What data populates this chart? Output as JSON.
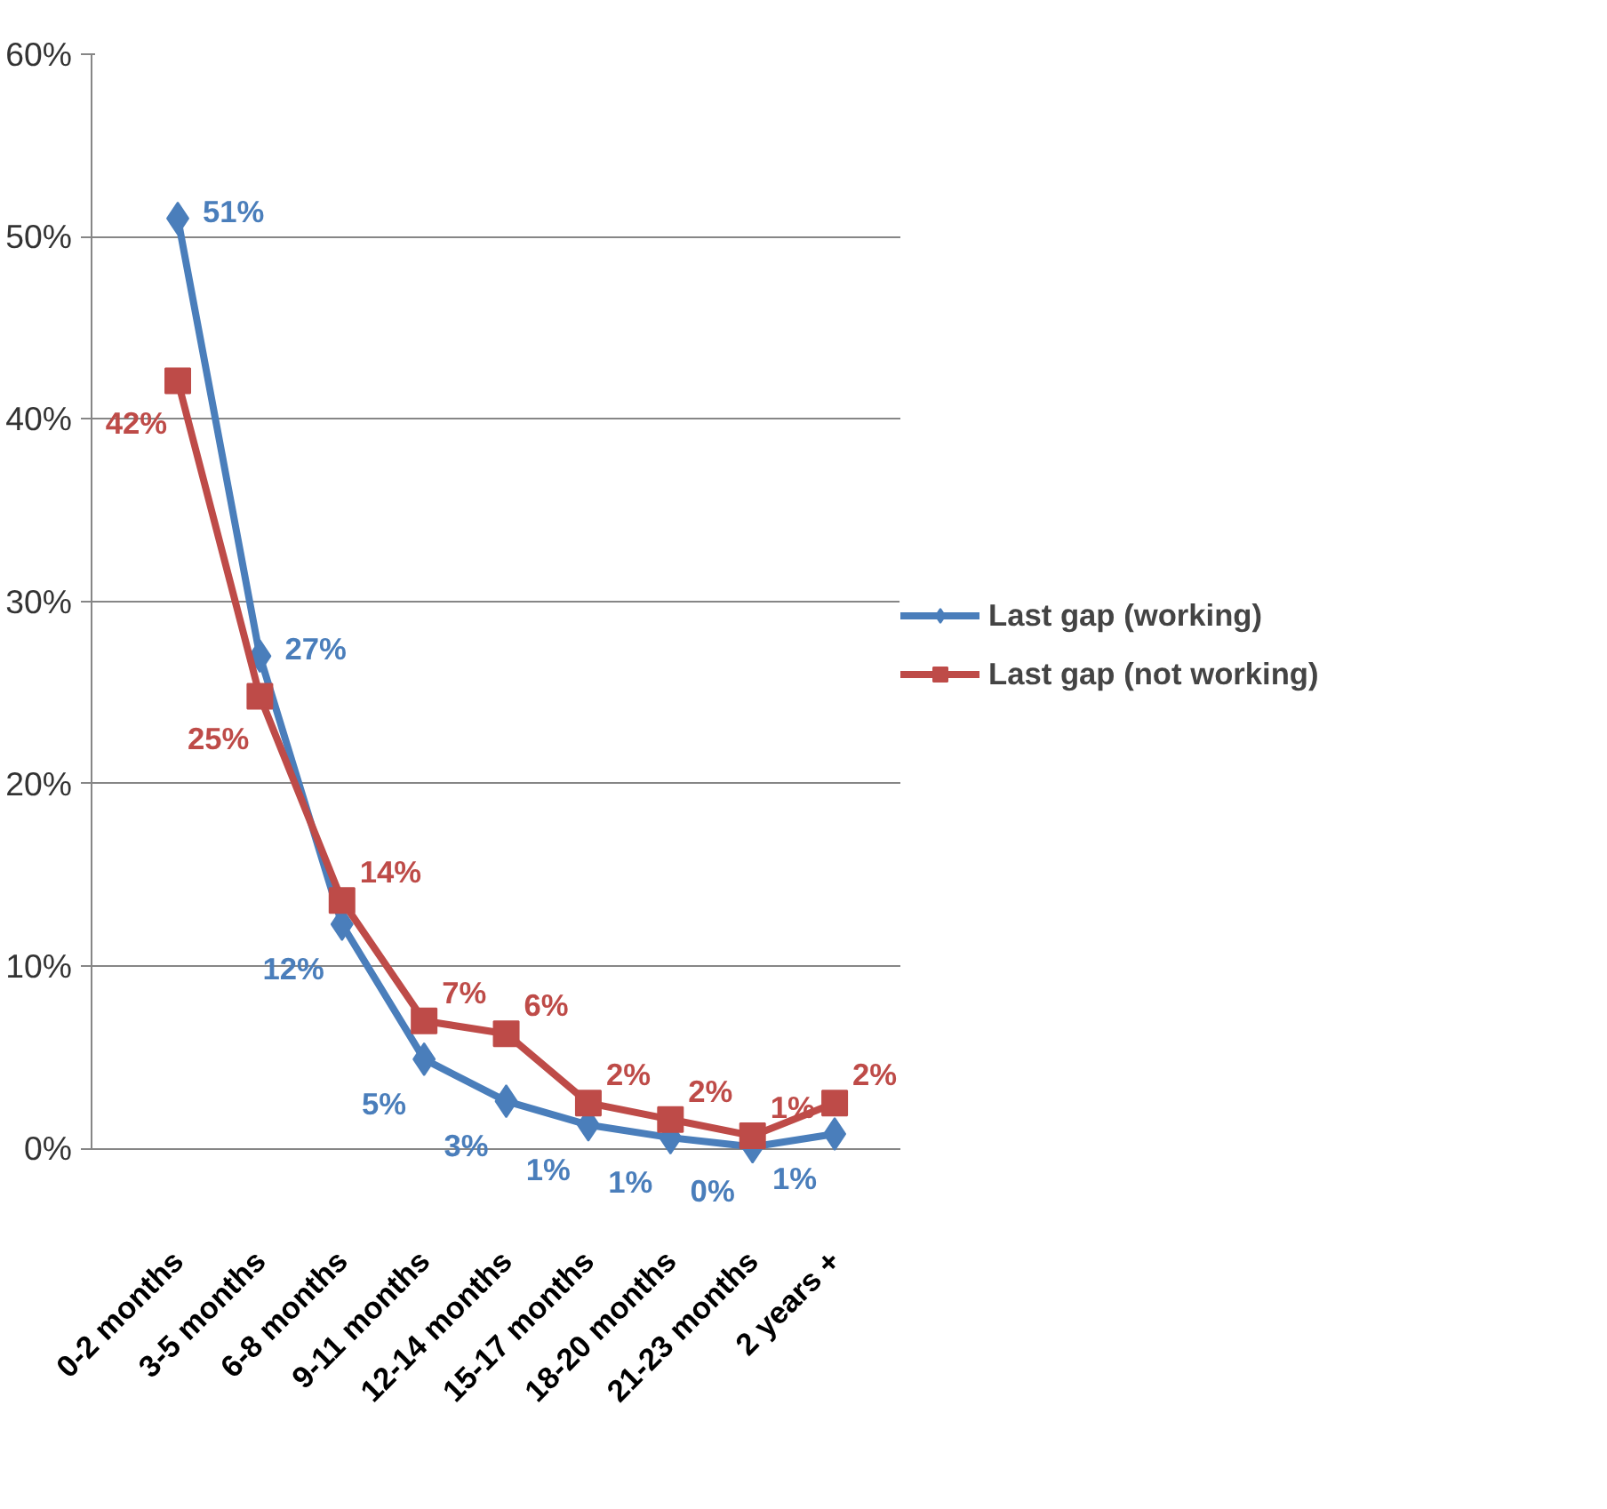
{
  "chart_data": {
    "type": "line",
    "categories": [
      "0-2 months",
      "3-5 months",
      "6-8 months",
      "9-11 months",
      "12-14 months",
      "15-17 months",
      "18-20 months",
      "21-23 months",
      "2 years +"
    ],
    "series": [
      {
        "name": "Last gap (working)",
        "color": "#4a7ebb",
        "marker": "diamond",
        "values": [
          51.0,
          27.0,
          12.3,
          4.9,
          2.6,
          1.3,
          0.6,
          0.1,
          0.8
        ],
        "value_labels": [
          "51%",
          "27%",
          "12%",
          "5%",
          "3%",
          "1%",
          "1%",
          "0%",
          "1%"
        ]
      },
      {
        "name": "Last gap (not working)",
        "color": "#be4b48",
        "marker": "square",
        "values": [
          42.1,
          24.8,
          13.6,
          7.0,
          6.3,
          2.5,
          1.6,
          0.7,
          2.5
        ],
        "value_labels": [
          "42%",
          "25%",
          "14%",
          "7%",
          "6%",
          "2%",
          "2%",
          "1%",
          "2%"
        ]
      }
    ],
    "ylim": [
      0,
      60
    ],
    "yticks": [
      {
        "value": 0,
        "label": "0%"
      },
      {
        "value": 10,
        "label": "10%"
      },
      {
        "value": 20,
        "label": "20%"
      },
      {
        "value": 30,
        "label": "30%"
      },
      {
        "value": 40,
        "label": "40%"
      },
      {
        "value": 50,
        "label": "50%"
      },
      {
        "value": 60,
        "label": "60%"
      }
    ],
    "grid": "y",
    "legend": "right",
    "line_style": "solid"
  }
}
